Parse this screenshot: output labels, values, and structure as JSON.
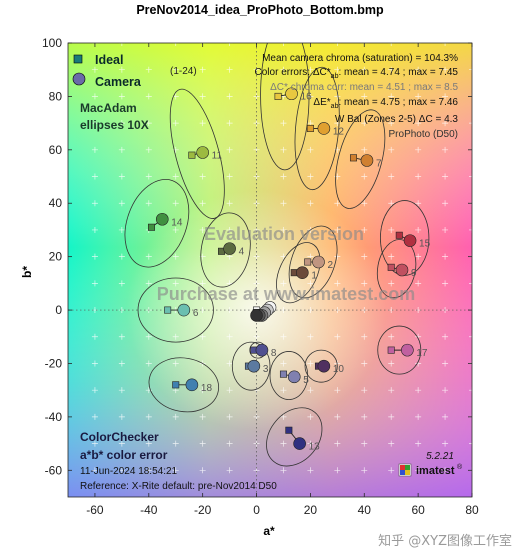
{
  "chart_data": {
    "type": "scatter",
    "title": "PreNov2014_idea_ProPhoto_Bottom.bmp",
    "xlabel": "a*",
    "ylabel": "b*",
    "xlim": [
      -70,
      80
    ],
    "ylim": [
      -70,
      100
    ],
    "xticks": [
      -60,
      -40,
      -20,
      0,
      20,
      40,
      60,
      80
    ],
    "yticks": [
      -60,
      -40,
      -20,
      0,
      20,
      40,
      60,
      80,
      100
    ],
    "grid": false,
    "legend_position": "top-left",
    "legend": {
      "ideal_label": "Ideal",
      "camera_label": "Camera",
      "range_label": "(1-24)",
      "ellipse_label_line1": "MacAdam",
      "ellipse_label_line2": "ellipses 10X"
    },
    "stats": {
      "line1": "Mean camera chroma (saturation) = 104.3%",
      "line2_prefix": "Color errors:  ",
      "line2_delta": "ΔC*",
      "line2_sub": "ab",
      "line2_values": ":  mean = 4.74 ;  max = 7.45",
      "line3_delta": "ΔC*",
      "line3_values": " chroma corr:  mean = 4.51 ;  max = 8.5",
      "line4_delta": "ΔE*",
      "line4_sub": "ab",
      "line4_values": ":  mean = 4.75 ;  max = 7.46",
      "line5": "W Bal (Zones 2-5)  ΔC = 4.3",
      "line6": "ProPhoto (D50)"
    },
    "watermark": {
      "line1": "Evaluation version",
      "line2": "Purchase at www.imatest.com"
    },
    "footer": {
      "line1": "ColorChecker",
      "line2": "a*b* color error",
      "timestamp": "11-Jun-2024 18:54:21",
      "reference": "Reference: X-Rite default:  pre-Nov2014   D50",
      "version": "5.2.21",
      "brand": "imatest",
      "brand_mark": "®"
    },
    "outer_watermark": "知乎 @XYZ图像工作室",
    "patches": [
      {
        "label": "1",
        "ideal": [
          14,
          14
        ],
        "camera": [
          17,
          14
        ],
        "ellipse_rx": 7,
        "ellipse_ry": 12,
        "ellipse_rot": 25,
        "color": "#6b4a3a"
      },
      {
        "label": "2",
        "ideal": [
          19,
          18
        ],
        "camera": [
          23,
          18
        ],
        "ellipse_rx": 8,
        "ellipse_ry": 14,
        "ellipse_rot": 20,
        "color": "#c09580"
      },
      {
        "label": "3",
        "ideal": [
          -3,
          -21
        ],
        "camera": [
          -1,
          -21
        ],
        "ellipse_rx": 7,
        "ellipse_ry": 9,
        "ellipse_rot": 0,
        "color": "#5c7aa0"
      },
      {
        "label": "4",
        "ideal": [
          -13,
          22
        ],
        "camera": [
          -10,
          23
        ],
        "ellipse_rx": 9,
        "ellipse_ry": 14,
        "ellipse_rot": 10,
        "color": "#5b6b40"
      },
      {
        "label": "5",
        "ideal": [
          10,
          -24
        ],
        "camera": [
          14,
          -25
        ],
        "ellipse_rx": 7,
        "ellipse_ry": 9,
        "ellipse_rot": 0,
        "color": "#8080b0"
      },
      {
        "label": "6",
        "ideal": [
          -33,
          0
        ],
        "camera": [
          -27,
          0
        ],
        "ellipse_rx": 14,
        "ellipse_ry": 12,
        "ellipse_rot": 0,
        "color": "#6bbfb0"
      },
      {
        "label": "7",
        "ideal": [
          36,
          57
        ],
        "camera": [
          41,
          56
        ],
        "ellipse_rx": 8,
        "ellipse_ry": 19,
        "ellipse_rot": 15,
        "color": "#d08030"
      },
      {
        "label": "8",
        "ideal": [
          -1,
          -15
        ],
        "camera": [
          2,
          -15
        ],
        "ellipse_rx": 3,
        "ellipse_ry": 3,
        "ellipse_rot": 0,
        "color": "#505090"
      },
      {
        "label": "9",
        "ideal": [
          50,
          16
        ],
        "camera": [
          54,
          15
        ],
        "ellipse_rx": 7,
        "ellipse_ry": 11,
        "ellipse_rot": 10,
        "color": "#c05060"
      },
      {
        "label": "10",
        "ideal": [
          23,
          -21
        ],
        "camera": [
          25,
          -21
        ],
        "ellipse_rx": 6,
        "ellipse_ry": 6,
        "ellipse_rot": 0,
        "color": "#503060"
      },
      {
        "label": "11",
        "ideal": [
          -24,
          58
        ],
        "camera": [
          -20,
          59
        ],
        "ellipse_rx": 8,
        "ellipse_ry": 25,
        "ellipse_rot": -15,
        "color": "#9cba40"
      },
      {
        "label": "12",
        "ideal": [
          20,
          68
        ],
        "camera": [
          25,
          68
        ],
        "ellipse_rx": 8,
        "ellipse_ry": 23,
        "ellipse_rot": 5,
        "color": "#e0a030"
      },
      {
        "label": "13",
        "ideal": [
          12,
          -45
        ],
        "camera": [
          16,
          -50
        ],
        "ellipse_rx": 9,
        "ellipse_ry": 12,
        "ellipse_rot": 40,
        "color": "#303080"
      },
      {
        "label": "14",
        "ideal": [
          -39,
          31
        ],
        "camera": [
          -35,
          34
        ],
        "ellipse_rx": 11,
        "ellipse_ry": 17,
        "ellipse_rot": 20,
        "color": "#409040"
      },
      {
        "label": "15",
        "ideal": [
          53,
          28
        ],
        "camera": [
          57,
          26
        ],
        "ellipse_rx": 9,
        "ellipse_ry": 14,
        "ellipse_rot": 0,
        "color": "#b03040"
      },
      {
        "label": "16",
        "ideal": [
          8,
          80
        ],
        "camera": [
          13,
          81
        ],
        "ellipse_rx": 9,
        "ellipse_ry": 28,
        "ellipse_rot": 0,
        "color": "#e8c840"
      },
      {
        "label": "17",
        "ideal": [
          50,
          -15
        ],
        "camera": [
          56,
          -15
        ],
        "ellipse_rx": 8,
        "ellipse_ry": 9,
        "ellipse_rot": 0,
        "color": "#c060a0"
      },
      {
        "label": "18",
        "ideal": [
          -30,
          -28
        ],
        "camera": [
          -24,
          -28
        ],
        "ellipse_rx": 13,
        "ellipse_ry": 10,
        "ellipse_rot": 10,
        "color": "#4080b0"
      },
      {
        "label": "",
        "ideal": [
          0,
          0
        ],
        "camera": [
          5,
          1
        ],
        "ellipse_rx": 0,
        "ellipse_ry": 0,
        "ellipse_rot": 0,
        "color": "#f4f4f4"
      },
      {
        "label": "",
        "ideal": [
          1,
          -1
        ],
        "camera": [
          4,
          0
        ],
        "ellipse_rx": 0,
        "ellipse_ry": 0,
        "ellipse_rot": 0,
        "color": "#c8c8c8"
      },
      {
        "label": "",
        "ideal": [
          1,
          -1
        ],
        "camera": [
          3,
          -1
        ],
        "ellipse_rx": 0,
        "ellipse_ry": 0,
        "ellipse_rot": 0,
        "color": "#a0a0a0"
      },
      {
        "label": "",
        "ideal": [
          0,
          -1
        ],
        "camera": [
          2,
          -2
        ],
        "ellipse_rx": 0,
        "ellipse_ry": 0,
        "ellipse_rot": 0,
        "color": "#7a7a7a"
      },
      {
        "label": "",
        "ideal": [
          0,
          -1
        ],
        "camera": [
          1,
          -2
        ],
        "ellipse_rx": 0,
        "ellipse_ry": 0,
        "ellipse_rot": 0,
        "color": "#555555"
      },
      {
        "label": "",
        "ideal": [
          0,
          -1
        ],
        "camera": [
          0,
          -2
        ],
        "ellipse_rx": 0,
        "ellipse_ry": 0,
        "ellipse_rot": 0,
        "color": "#333333"
      }
    ]
  }
}
